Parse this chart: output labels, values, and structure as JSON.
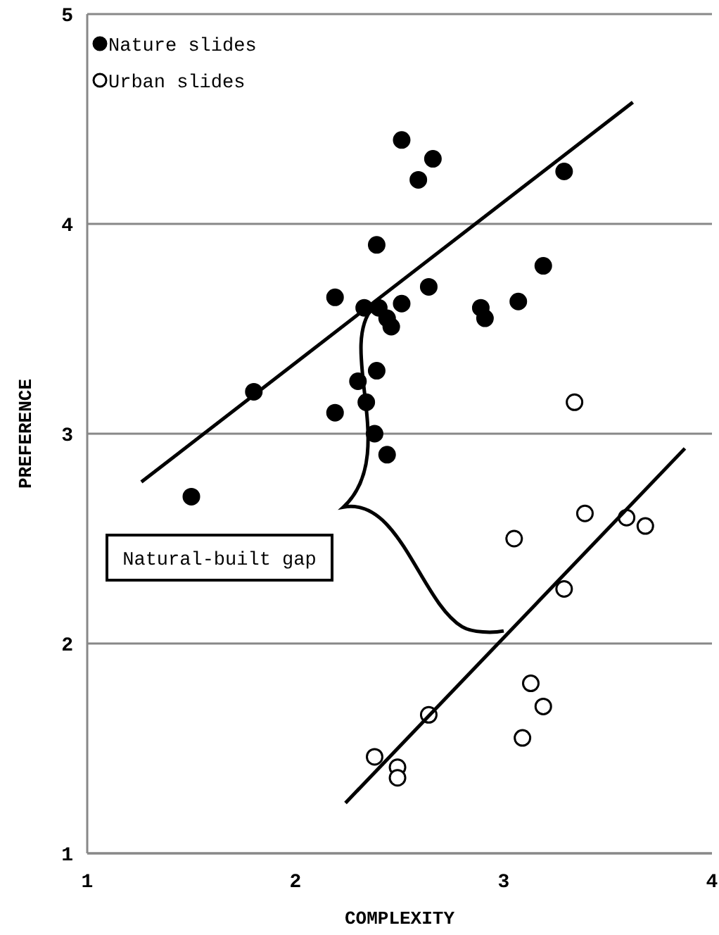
{
  "chart_data": {
    "type": "scatter",
    "xlabel": "COMPLEXITY",
    "ylabel": "PREFERENCE",
    "xlim": [
      1,
      4
    ],
    "ylim": [
      1,
      5
    ],
    "xticks": [
      1,
      2,
      3,
      4
    ],
    "yticks": [
      1,
      2,
      3,
      4,
      5
    ],
    "grid": "y",
    "legend": "top left",
    "marker": "circle",
    "annotations": [
      "Natural-built gap"
    ],
    "series": [
      {
        "name": "Nature slides",
        "color": "#000000",
        "x": [
          1.5,
          1.8,
          2.19,
          2.19,
          2.39,
          2.33,
          2.4,
          2.51,
          2.44,
          2.46,
          2.64,
          2.39,
          2.3,
          2.34,
          2.38,
          2.44,
          2.51,
          2.66,
          2.59,
          2.89,
          2.91,
          3.07,
          3.19,
          3.29
        ],
        "values": [
          2.7,
          3.2,
          3.1,
          3.65,
          3.9,
          3.6,
          3.6,
          3.62,
          3.55,
          3.51,
          3.7,
          3.3,
          3.25,
          3.15,
          3.0,
          2.9,
          4.4,
          4.31,
          4.21,
          3.6,
          3.55,
          3.63,
          3.8,
          4.25
        ]
      },
      {
        "name": "Urban slides",
        "color": "#ffffff",
        "x": [
          3.34,
          3.05,
          3.39,
          3.59,
          3.68,
          3.29,
          3.13,
          3.19,
          3.09,
          2.64,
          2.38,
          2.49,
          2.49
        ],
        "values": [
          3.15,
          2.5,
          2.62,
          2.6,
          2.56,
          2.26,
          1.81,
          1.7,
          1.55,
          1.66,
          1.46,
          1.41,
          1.36
        ]
      },
      {
        "type": "line",
        "marker": "none",
        "color": "#000000",
        "x": [
          1.26,
          3.62
        ],
        "values": [
          2.77,
          4.58
        ]
      },
      {
        "type": "line",
        "marker": "none",
        "color": "#000000",
        "x": [
          2.24,
          3.87
        ],
        "values": [
          1.24,
          2.93
        ]
      }
    ]
  }
}
